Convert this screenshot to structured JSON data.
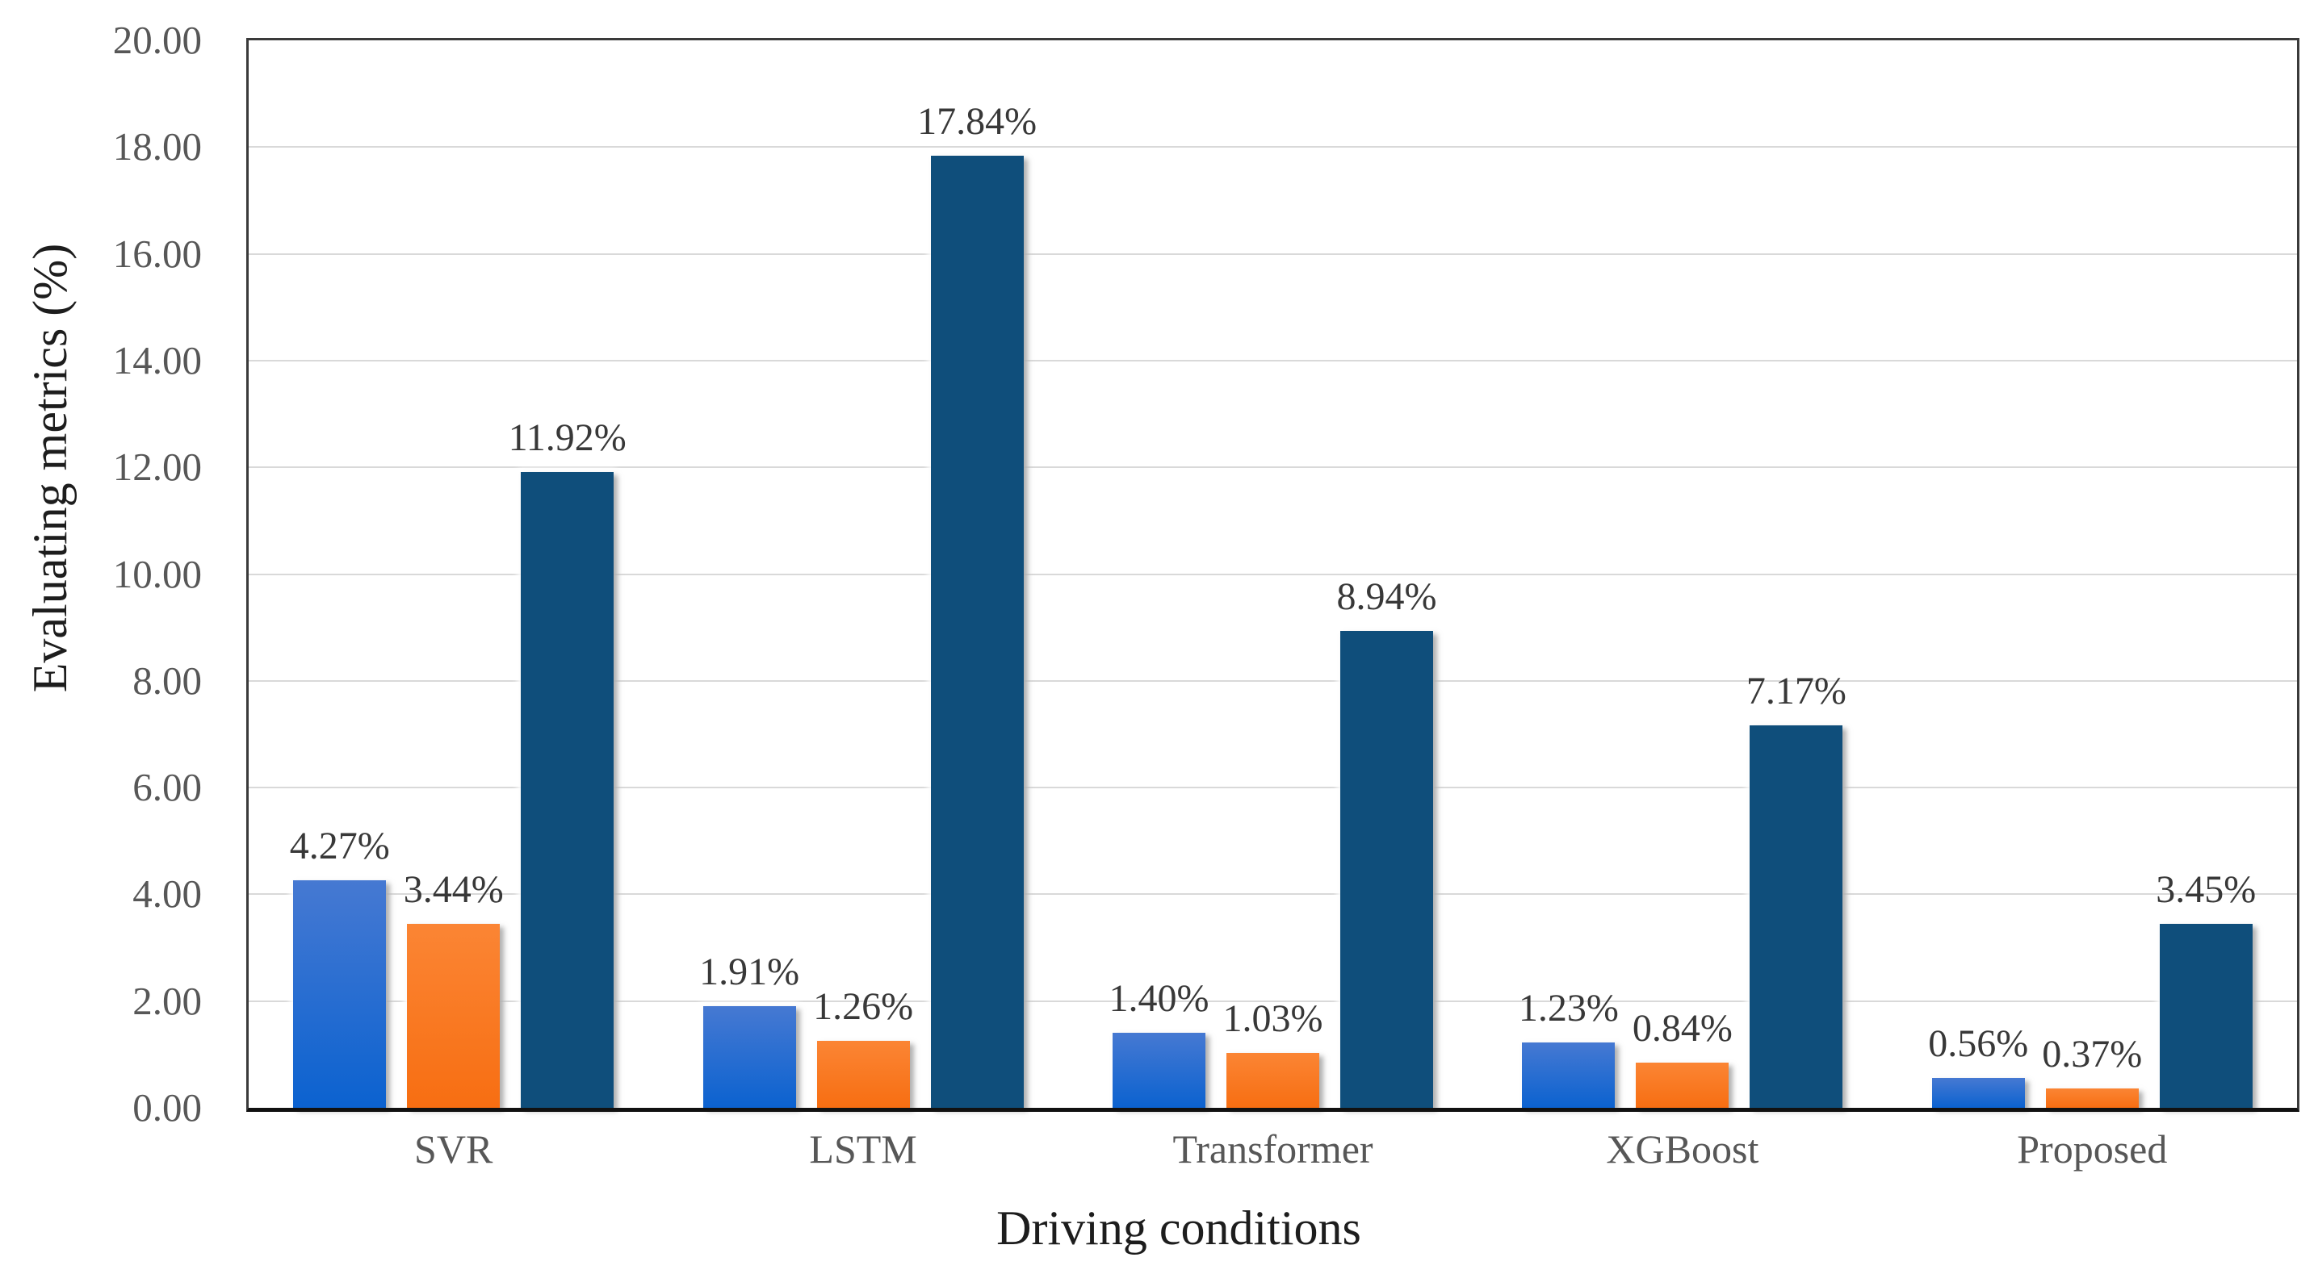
{
  "chart_data": {
    "type": "bar",
    "title": "",
    "xlabel": "Driving conditions",
    "ylabel": "Evaluating metrics (%)",
    "categories": [
      "SVR",
      "LSTM",
      "Transformer",
      "XGBoost",
      "Proposed"
    ],
    "series": [
      {
        "name": "series-blue",
        "color_key": "blue",
        "values": [
          4.27,
          1.91,
          1.4,
          1.23,
          0.56
        ],
        "labels": [
          "4.27%",
          "1.91%",
          "1.40%",
          "1.23%",
          "0.56%"
        ]
      },
      {
        "name": "series-orange",
        "color_key": "orange",
        "values": [
          3.44,
          1.26,
          1.03,
          0.84,
          0.37
        ],
        "labels": [
          "3.44%",
          "1.26%",
          "1.03%",
          "0.84%",
          "0.37%"
        ]
      },
      {
        "name": "series-navy",
        "color_key": "navy",
        "values": [
          11.92,
          17.84,
          8.94,
          7.17,
          3.45
        ],
        "labels": [
          "11.92%",
          "17.84%",
          "8.94%",
          "7.17%",
          "3.45%"
        ]
      }
    ],
    "ylim": [
      0,
      20
    ],
    "yticks": [
      {
        "value": 0,
        "label": "0.00"
      },
      {
        "value": 2,
        "label": "2.00"
      },
      {
        "value": 4,
        "label": "4.00"
      },
      {
        "value": 6,
        "label": "6.00"
      },
      {
        "value": 8,
        "label": "8.00"
      },
      {
        "value": 10,
        "label": "10.00"
      },
      {
        "value": 12,
        "label": "12.00"
      },
      {
        "value": 14,
        "label": "14.00"
      },
      {
        "value": 16,
        "label": "16.00"
      },
      {
        "value": 18,
        "label": "18.00"
      },
      {
        "value": 20,
        "label": "20.00"
      }
    ],
    "grid": "horizontal",
    "legend": "none"
  },
  "colors": {
    "bar_blue_top": "#4679D2",
    "bar_blue_bottom": "#0B62D0",
    "bar_orange_top": "#FB8534",
    "bar_orange_bottom": "#F76E12",
    "bar_navy": "#0F4E7B",
    "gridline": "#D9D9D9",
    "axis_border": "#3A3A3A",
    "axis_bottom": "#111111",
    "tick_label": "#575757",
    "data_label": "#383838",
    "axis_title": "#1D1D1D"
  }
}
